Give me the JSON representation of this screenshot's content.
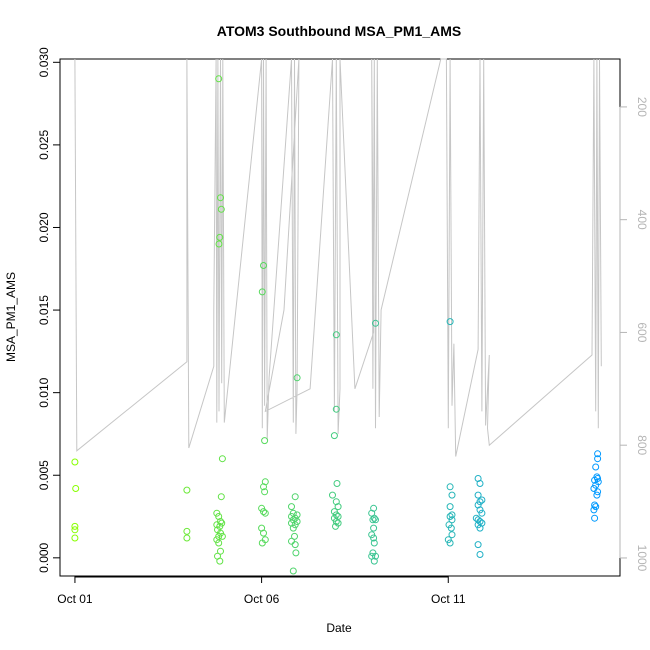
{
  "chart_data": {
    "type": "scatter",
    "title": "ATOM3 Southbound MSA_PM1_AMS",
    "xlabel": "Date",
    "ylabel": "MSA_PM1_AMS",
    "x_ticks": [
      "Oct 01",
      "Oct 06",
      "Oct 11"
    ],
    "x_tick_values": [
      1,
      6,
      11
    ],
    "xlim": [
      0.6,
      15.6
    ],
    "ylim": [
      -0.0011,
      0.0302
    ],
    "y_ticks": [
      0.0,
      0.005,
      0.01,
      0.015,
      0.02,
      0.025,
      0.03
    ],
    "y_tick_labels": [
      "0.000",
      "0.005",
      "0.010",
      "0.015",
      "0.020",
      "0.025",
      "0.030"
    ],
    "y2_ticks": [
      200,
      400,
      600,
      800,
      1000
    ],
    "y2lim": [
      1032,
      115
    ],
    "y2_reversed": true,
    "grid": false,
    "legend": "none",
    "colors": {
      "points_start": "#88ff00",
      "points_end": "#0099ff",
      "altitude_line": "#c6c6c6",
      "axis": "#000000",
      "right_axis": "#b5b5b5"
    },
    "series": [
      {
        "kind": "points",
        "points": [
          [
            1.0,
            0.0058
          ],
          [
            1.02,
            0.0042
          ],
          [
            1.0,
            0.0019
          ],
          [
            1.0,
            0.0017
          ],
          [
            1.0,
            0.0012
          ],
          [
            4.0,
            0.0041
          ],
          [
            4.0,
            0.0016
          ],
          [
            4.0,
            0.0012
          ],
          [
            4.85,
            0.029
          ],
          [
            4.9,
            0.0218
          ],
          [
            4.92,
            0.0211
          ],
          [
            4.88,
            0.0194
          ],
          [
            4.86,
            0.019
          ],
          [
            4.95,
            0.006
          ],
          [
            4.92,
            0.0037
          ],
          [
            4.8,
            0.0027
          ],
          [
            4.85,
            0.0025
          ],
          [
            4.9,
            0.0022
          ],
          [
            4.93,
            0.0021
          ],
          [
            4.8,
            0.002
          ],
          [
            4.88,
            0.0019
          ],
          [
            4.82,
            0.0017
          ],
          [
            4.9,
            0.0015
          ],
          [
            4.85,
            0.0013
          ],
          [
            4.95,
            0.0013
          ],
          [
            4.8,
            0.0011
          ],
          [
            4.85,
            0.0009
          ],
          [
            4.9,
            0.0004
          ],
          [
            4.82,
            0.0001
          ],
          [
            4.88,
            -0.0002
          ],
          [
            6.05,
            0.0177
          ],
          [
            6.02,
            0.0161
          ],
          [
            6.08,
            0.0071
          ],
          [
            6.1,
            0.0046
          ],
          [
            6.05,
            0.0043
          ],
          [
            6.08,
            0.004
          ],
          [
            6.0,
            0.003
          ],
          [
            6.05,
            0.0028
          ],
          [
            6.1,
            0.0027
          ],
          [
            6.0,
            0.0018
          ],
          [
            6.05,
            0.0015
          ],
          [
            6.1,
            0.0011
          ],
          [
            6.02,
            0.0009
          ],
          [
            6.95,
            0.0109
          ],
          [
            6.9,
            0.0037
          ],
          [
            6.8,
            0.0031
          ],
          [
            6.85,
            0.0027
          ],
          [
            6.95,
            0.0026
          ],
          [
            6.8,
            0.0025
          ],
          [
            6.9,
            0.0024
          ],
          [
            6.85,
            0.0023
          ],
          [
            6.95,
            0.0022
          ],
          [
            6.8,
            0.0021
          ],
          [
            6.9,
            0.002
          ],
          [
            6.85,
            0.0018
          ],
          [
            6.88,
            0.0013
          ],
          [
            6.8,
            0.001
          ],
          [
            6.9,
            0.0008
          ],
          [
            6.92,
            0.0003
          ],
          [
            6.85,
            -0.0008
          ],
          [
            8.0,
            0.0135
          ],
          [
            8.0,
            0.009
          ],
          [
            7.95,
            0.0074
          ],
          [
            8.02,
            0.0045
          ],
          [
            7.9,
            0.0038
          ],
          [
            8.0,
            0.0034
          ],
          [
            8.05,
            0.0031
          ],
          [
            7.95,
            0.0028
          ],
          [
            8.0,
            0.0026
          ],
          [
            8.05,
            0.0025
          ],
          [
            7.95,
            0.0024
          ],
          [
            8.0,
            0.0022
          ],
          [
            8.05,
            0.0021
          ],
          [
            7.98,
            0.0019
          ],
          [
            9.05,
            0.0142
          ],
          [
            9.0,
            0.003
          ],
          [
            8.95,
            0.0027
          ],
          [
            9.02,
            0.0024
          ],
          [
            8.98,
            0.0023
          ],
          [
            9.05,
            0.0023
          ],
          [
            9.0,
            0.0018
          ],
          [
            8.95,
            0.0014
          ],
          [
            9.0,
            0.0012
          ],
          [
            9.02,
            0.0009
          ],
          [
            8.98,
            0.0003
          ],
          [
            9.05,
            0.0001
          ],
          [
            8.95,
            0.0001
          ],
          [
            9.02,
            -0.0002
          ],
          [
            11.05,
            0.0143
          ],
          [
            11.05,
            0.0043
          ],
          [
            11.1,
            0.0038
          ],
          [
            11.05,
            0.0031
          ],
          [
            11.1,
            0.0026
          ],
          [
            11.05,
            0.0025
          ],
          [
            11.1,
            0.0023
          ],
          [
            11.02,
            0.002
          ],
          [
            11.08,
            0.0018
          ],
          [
            11.1,
            0.0014
          ],
          [
            11.0,
            0.0011
          ],
          [
            11.05,
            0.0009
          ],
          [
            11.8,
            0.0048
          ],
          [
            11.85,
            0.0045
          ],
          [
            11.8,
            0.0038
          ],
          [
            11.9,
            0.0035
          ],
          [
            11.85,
            0.0034
          ],
          [
            11.8,
            0.0032
          ],
          [
            11.85,
            0.0029
          ],
          [
            11.9,
            0.0027
          ],
          [
            11.75,
            0.0024
          ],
          [
            11.8,
            0.0023
          ],
          [
            11.85,
            0.0022
          ],
          [
            11.9,
            0.0021
          ],
          [
            11.8,
            0.002
          ],
          [
            11.85,
            0.0018
          ],
          [
            11.8,
            0.0008
          ],
          [
            11.85,
            0.0002
          ],
          [
            15.0,
            0.0063
          ],
          [
            15.0,
            0.006
          ],
          [
            14.95,
            0.0055
          ],
          [
            14.98,
            0.0049
          ],
          [
            15.0,
            0.0048
          ],
          [
            14.92,
            0.0047
          ],
          [
            15.02,
            0.0046
          ],
          [
            14.95,
            0.0044
          ],
          [
            14.9,
            0.0042
          ],
          [
            15.0,
            0.004
          ],
          [
            14.98,
            0.0038
          ],
          [
            14.92,
            0.0032
          ],
          [
            14.95,
            0.0031
          ],
          [
            14.9,
            0.0029
          ],
          [
            14.92,
            0.0024
          ]
        ]
      },
      {
        "kind": "altitude-line",
        "points": [
          [
            1.0,
            115
          ],
          [
            1.05,
            810
          ],
          [
            4.0,
            652
          ],
          [
            4.0,
            115
          ],
          [
            4.05,
            805
          ],
          [
            4.72,
            660
          ],
          [
            4.72,
            560
          ],
          [
            4.78,
            115
          ],
          [
            4.8,
            760
          ],
          [
            4.83,
            115
          ],
          [
            4.86,
            740
          ],
          [
            4.9,
            115
          ],
          [
            4.93,
            690
          ],
          [
            4.96,
            115
          ],
          [
            5.0,
            760
          ],
          [
            6.0,
            115
          ],
          [
            6.02,
            770
          ],
          [
            6.05,
            115
          ],
          [
            6.08,
            730
          ],
          [
            6.12,
            115
          ],
          [
            6.15,
            790
          ],
          [
            6.2,
            680
          ],
          [
            6.8,
            115
          ],
          [
            6.85,
            760
          ],
          [
            6.88,
            115
          ],
          [
            6.92,
            780
          ],
          [
            6.95,
            700
          ],
          [
            7.0,
            115
          ],
          [
            6.6,
            560
          ],
          [
            6.1,
            740
          ],
          [
            7.3,
            700
          ],
          [
            7.9,
            115
          ],
          [
            7.95,
            740
          ],
          [
            8.0,
            115
          ],
          [
            8.05,
            780
          ],
          [
            8.1,
            700
          ],
          [
            8.1,
            115
          ],
          [
            8.5,
            700
          ],
          [
            9.0,
            600
          ],
          [
            8.95,
            115
          ],
          [
            8.98,
            700
          ],
          [
            9.02,
            115
          ],
          [
            9.05,
            770
          ],
          [
            9.1,
            115
          ],
          [
            9.15,
            750
          ],
          [
            9.2,
            560
          ],
          [
            10.8,
            115
          ],
          [
            10.95,
            115
          ],
          [
            11.0,
            770
          ],
          [
            11.05,
            115
          ],
          [
            11.1,
            730
          ],
          [
            11.15,
            620
          ],
          [
            11.2,
            820
          ],
          [
            11.8,
            630
          ],
          [
            11.85,
            115
          ],
          [
            11.9,
            740
          ],
          [
            11.95,
            115
          ],
          [
            12.0,
            765
          ],
          [
            12.1,
            640
          ],
          [
            12.05,
            770
          ],
          [
            12.1,
            800
          ],
          [
            14.85,
            640
          ],
          [
            14.9,
            115
          ],
          [
            14.95,
            740
          ],
          [
            14.98,
            115
          ],
          [
            15.02,
            770
          ],
          [
            15.05,
            115
          ],
          [
            15.1,
            660
          ]
        ]
      }
    ]
  }
}
